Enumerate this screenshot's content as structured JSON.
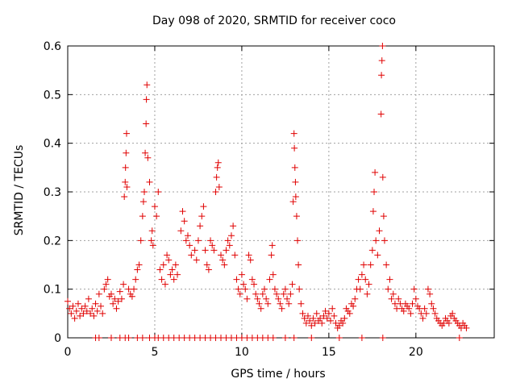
{
  "chart_data": {
    "type": "scatter",
    "title": "Day 098 of 2020, SRMTID for receiver coco",
    "xlabel": "GPS time / hours",
    "ylabel": "SRMTID / TECUs",
    "xlim": [
      0,
      24.5
    ],
    "ylim": [
      0,
      0.6
    ],
    "x_ticks": [
      0,
      5,
      10,
      15,
      20
    ],
    "y_ticks": [
      0,
      0.1,
      0.2,
      0.3,
      0.4,
      0.5,
      0.6
    ],
    "x_tick_labels": [
      "0",
      "5",
      "10",
      "15",
      "20"
    ],
    "y_tick_labels": [
      "0",
      "0.1",
      "0.2",
      "0.3",
      "0.4",
      "0.5",
      "0.6"
    ],
    "grid": true,
    "marker": "+",
    "color": "#e00000",
    "series": [
      {
        "name": "SRMTID",
        "points": [
          [
            0.0,
            0.075
          ],
          [
            0.1,
            0.06
          ],
          [
            0.2,
            0.05
          ],
          [
            0.3,
            0.065
          ],
          [
            0.4,
            0.04
          ],
          [
            0.5,
            0.055
          ],
          [
            0.6,
            0.07
          ],
          [
            0.7,
            0.045
          ],
          [
            0.8,
            0.06
          ],
          [
            0.9,
            0.05
          ],
          [
            1.0,
            0.065
          ],
          [
            1.1,
            0.055
          ],
          [
            1.2,
            0.08
          ],
          [
            1.3,
            0.05
          ],
          [
            1.4,
            0.06
          ],
          [
            1.5,
            0.045
          ],
          [
            1.6,
            0.07
          ],
          [
            1.7,
            0.055
          ],
          [
            1.8,
            0.09
          ],
          [
            1.9,
            0.065
          ],
          [
            2.0,
            0.05
          ],
          [
            2.1,
            0.1
          ],
          [
            2.2,
            0.11
          ],
          [
            2.3,
            0.12
          ],
          [
            2.4,
            0.085
          ],
          [
            2.5,
            0.09
          ],
          [
            2.6,
            0.07
          ],
          [
            2.7,
            0.08
          ],
          [
            2.8,
            0.06
          ],
          [
            2.9,
            0.075
          ],
          [
            3.0,
            0.095
          ],
          [
            3.1,
            0.08
          ],
          [
            3.2,
            0.11
          ],
          [
            3.25,
            0.29
          ],
          [
            3.3,
            0.32
          ],
          [
            3.32,
            0.35
          ],
          [
            3.35,
            0.38
          ],
          [
            3.38,
            0.42
          ],
          [
            3.4,
            0.31
          ],
          [
            3.5,
            0.1
          ],
          [
            3.6,
            0.09
          ],
          [
            3.7,
            0.085
          ],
          [
            3.8,
            0.1
          ],
          [
            3.9,
            0.12
          ],
          [
            4.0,
            0.14
          ],
          [
            4.1,
            0.15
          ],
          [
            4.2,
            0.2
          ],
          [
            4.3,
            0.25
          ],
          [
            4.35,
            0.28
          ],
          [
            4.4,
            0.3
          ],
          [
            4.45,
            0.38
          ],
          [
            4.5,
            0.44
          ],
          [
            4.52,
            0.49
          ],
          [
            4.55,
            0.52
          ],
          [
            4.6,
            0.37
          ],
          [
            4.7,
            0.32
          ],
          [
            4.8,
            0.2
          ],
          [
            4.85,
            0.22
          ],
          [
            4.9,
            0.19
          ],
          [
            5.0,
            0.27
          ],
          [
            5.1,
            0.25
          ],
          [
            5.2,
            0.3
          ],
          [
            5.3,
            0.14
          ],
          [
            5.4,
            0.12
          ],
          [
            5.5,
            0.15
          ],
          [
            5.6,
            0.11
          ],
          [
            5.7,
            0.17
          ],
          [
            5.8,
            0.16
          ],
          [
            5.9,
            0.13
          ],
          [
            6.0,
            0.14
          ],
          [
            6.1,
            0.12
          ],
          [
            6.2,
            0.15
          ],
          [
            6.3,
            0.13
          ],
          [
            6.5,
            0.22
          ],
          [
            6.6,
            0.26
          ],
          [
            6.7,
            0.24
          ],
          [
            6.8,
            0.2
          ],
          [
            6.9,
            0.21
          ],
          [
            7.0,
            0.19
          ],
          [
            7.1,
            0.17
          ],
          [
            7.3,
            0.18
          ],
          [
            7.4,
            0.16
          ],
          [
            7.5,
            0.2
          ],
          [
            7.6,
            0.23
          ],
          [
            7.7,
            0.25
          ],
          [
            7.8,
            0.27
          ],
          [
            7.9,
            0.18
          ],
          [
            8.0,
            0.15
          ],
          [
            8.1,
            0.14
          ],
          [
            8.2,
            0.2
          ],
          [
            8.3,
            0.19
          ],
          [
            8.4,
            0.18
          ],
          [
            8.5,
            0.3
          ],
          [
            8.55,
            0.33
          ],
          [
            8.6,
            0.35
          ],
          [
            8.65,
            0.36
          ],
          [
            8.7,
            0.31
          ],
          [
            8.8,
            0.17
          ],
          [
            8.9,
            0.16
          ],
          [
            9.0,
            0.15
          ],
          [
            9.1,
            0.18
          ],
          [
            9.2,
            0.2
          ],
          [
            9.3,
            0.19
          ],
          [
            9.4,
            0.21
          ],
          [
            9.5,
            0.23
          ],
          [
            9.6,
            0.17
          ],
          [
            9.7,
            0.12
          ],
          [
            9.8,
            0.1
          ],
          [
            9.9,
            0.09
          ],
          [
            10.0,
            0.13
          ],
          [
            10.1,
            0.11
          ],
          [
            10.2,
            0.1
          ],
          [
            10.3,
            0.08
          ],
          [
            10.4,
            0.17
          ],
          [
            10.5,
            0.16
          ],
          [
            10.6,
            0.12
          ],
          [
            10.7,
            0.11
          ],
          [
            10.8,
            0.09
          ],
          [
            10.9,
            0.08
          ],
          [
            11.0,
            0.07
          ],
          [
            11.1,
            0.06
          ],
          [
            11.2,
            0.09
          ],
          [
            11.3,
            0.1
          ],
          [
            11.4,
            0.08
          ],
          [
            11.5,
            0.07
          ],
          [
            11.6,
            0.12
          ],
          [
            11.7,
            0.17
          ],
          [
            11.75,
            0.19
          ],
          [
            11.8,
            0.13
          ],
          [
            11.9,
            0.1
          ],
          [
            12.0,
            0.09
          ],
          [
            12.1,
            0.08
          ],
          [
            12.2,
            0.07
          ],
          [
            12.3,
            0.06
          ],
          [
            12.4,
            0.09
          ],
          [
            12.5,
            0.1
          ],
          [
            12.6,
            0.08
          ],
          [
            12.7,
            0.07
          ],
          [
            12.8,
            0.09
          ],
          [
            12.9,
            0.11
          ],
          [
            12.95,
            0.28
          ],
          [
            13.0,
            0.42
          ],
          [
            13.02,
            0.39
          ],
          [
            13.05,
            0.35
          ],
          [
            13.08,
            0.32
          ],
          [
            13.1,
            0.29
          ],
          [
            13.15,
            0.25
          ],
          [
            13.2,
            0.2
          ],
          [
            13.25,
            0.15
          ],
          [
            13.3,
            0.1
          ],
          [
            13.4,
            0.07
          ],
          [
            13.5,
            0.05
          ],
          [
            13.6,
            0.04
          ],
          [
            13.7,
            0.03
          ],
          [
            13.8,
            0.045
          ],
          [
            13.9,
            0.035
          ],
          [
            14.0,
            0.025
          ],
          [
            14.1,
            0.04
          ],
          [
            14.2,
            0.03
          ],
          [
            14.3,
            0.05
          ],
          [
            14.4,
            0.035
          ],
          [
            14.5,
            0.04
          ],
          [
            14.6,
            0.03
          ],
          [
            14.7,
            0.045
          ],
          [
            14.8,
            0.055
          ],
          [
            14.9,
            0.04
          ],
          [
            15.0,
            0.05
          ],
          [
            15.1,
            0.035
          ],
          [
            15.2,
            0.06
          ],
          [
            15.3,
            0.045
          ],
          [
            15.4,
            0.03
          ],
          [
            15.5,
            0.02
          ],
          [
            15.6,
            0.025
          ],
          [
            15.7,
            0.035
          ],
          [
            15.8,
            0.03
          ],
          [
            15.9,
            0.04
          ],
          [
            16.0,
            0.06
          ],
          [
            16.1,
            0.055
          ],
          [
            16.2,
            0.05
          ],
          [
            16.3,
            0.07
          ],
          [
            16.4,
            0.065
          ],
          [
            16.5,
            0.08
          ],
          [
            16.6,
            0.1
          ],
          [
            16.7,
            0.12
          ],
          [
            16.8,
            0.1
          ],
          [
            16.9,
            0.13
          ],
          [
            17.0,
            0.15
          ],
          [
            17.1,
            0.12
          ],
          [
            17.2,
            0.09
          ],
          [
            17.3,
            0.11
          ],
          [
            17.4,
            0.15
          ],
          [
            17.5,
            0.18
          ],
          [
            17.55,
            0.26
          ],
          [
            17.6,
            0.3
          ],
          [
            17.65,
            0.34
          ],
          [
            17.7,
            0.2
          ],
          [
            17.8,
            0.17
          ],
          [
            17.9,
            0.22
          ],
          [
            18.0,
            0.46
          ],
          [
            18.02,
            0.54
          ],
          [
            18.05,
            0.57
          ],
          [
            18.08,
            0.6
          ],
          [
            18.1,
            0.33
          ],
          [
            18.15,
            0.25
          ],
          [
            18.2,
            0.2
          ],
          [
            18.3,
            0.15
          ],
          [
            18.4,
            0.1
          ],
          [
            18.5,
            0.12
          ],
          [
            18.6,
            0.08
          ],
          [
            18.7,
            0.09
          ],
          [
            18.8,
            0.07
          ],
          [
            18.9,
            0.06
          ],
          [
            19.0,
            0.08
          ],
          [
            19.1,
            0.07
          ],
          [
            19.2,
            0.06
          ],
          [
            19.3,
            0.055
          ],
          [
            19.4,
            0.07
          ],
          [
            19.5,
            0.065
          ],
          [
            19.6,
            0.06
          ],
          [
            19.7,
            0.05
          ],
          [
            19.8,
            0.07
          ],
          [
            19.9,
            0.1
          ],
          [
            20.0,
            0.08
          ],
          [
            20.1,
            0.065
          ],
          [
            20.2,
            0.06
          ],
          [
            20.3,
            0.05
          ],
          [
            20.4,
            0.04
          ],
          [
            20.5,
            0.06
          ],
          [
            20.6,
            0.05
          ],
          [
            20.7,
            0.1
          ],
          [
            20.8,
            0.09
          ],
          [
            20.9,
            0.07
          ],
          [
            21.0,
            0.06
          ],
          [
            21.1,
            0.05
          ],
          [
            21.2,
            0.04
          ],
          [
            21.3,
            0.035
          ],
          [
            21.4,
            0.03
          ],
          [
            21.5,
            0.025
          ],
          [
            21.6,
            0.03
          ],
          [
            21.7,
            0.04
          ],
          [
            21.8,
            0.035
          ],
          [
            21.9,
            0.03
          ],
          [
            22.0,
            0.045
          ],
          [
            22.1,
            0.05
          ],
          [
            22.2,
            0.04
          ],
          [
            22.3,
            0.035
          ],
          [
            22.4,
            0.03
          ],
          [
            22.5,
            0.025
          ],
          [
            22.6,
            0.02
          ],
          [
            22.7,
            0.03
          ],
          [
            22.8,
            0.025
          ],
          [
            22.9,
            0.02
          ],
          [
            1.6,
            0.0
          ],
          [
            1.8,
            0.0
          ],
          [
            2.5,
            0.0
          ],
          [
            3.0,
            0.0
          ],
          [
            3.3,
            0.0
          ],
          [
            3.5,
            0.0
          ],
          [
            4.0,
            0.0
          ],
          [
            4.3,
            0.0
          ],
          [
            4.7,
            0.0
          ],
          [
            5.0,
            0.0
          ],
          [
            5.2,
            0.0
          ],
          [
            5.5,
            0.0
          ],
          [
            5.8,
            0.0
          ],
          [
            6.1,
            0.0
          ],
          [
            6.4,
            0.0
          ],
          [
            6.7,
            0.0
          ],
          [
            7.0,
            0.0
          ],
          [
            7.3,
            0.0
          ],
          [
            7.6,
            0.0
          ],
          [
            7.9,
            0.0
          ],
          [
            8.2,
            0.0
          ],
          [
            8.5,
            0.0
          ],
          [
            8.8,
            0.0
          ],
          [
            9.1,
            0.0
          ],
          [
            9.4,
            0.0
          ],
          [
            9.7,
            0.0
          ],
          [
            10.0,
            0.0
          ],
          [
            10.3,
            0.0
          ],
          [
            10.6,
            0.0
          ],
          [
            10.9,
            0.0
          ],
          [
            11.2,
            0.0
          ],
          [
            11.5,
            0.0
          ],
          [
            11.8,
            0.0
          ],
          [
            12.5,
            0.0
          ],
          [
            13.0,
            0.0
          ],
          [
            14.0,
            0.0
          ],
          [
            15.6,
            0.0
          ],
          [
            16.9,
            0.0
          ],
          [
            18.1,
            0.0
          ],
          [
            22.5,
            0.0
          ]
        ]
      }
    ]
  }
}
